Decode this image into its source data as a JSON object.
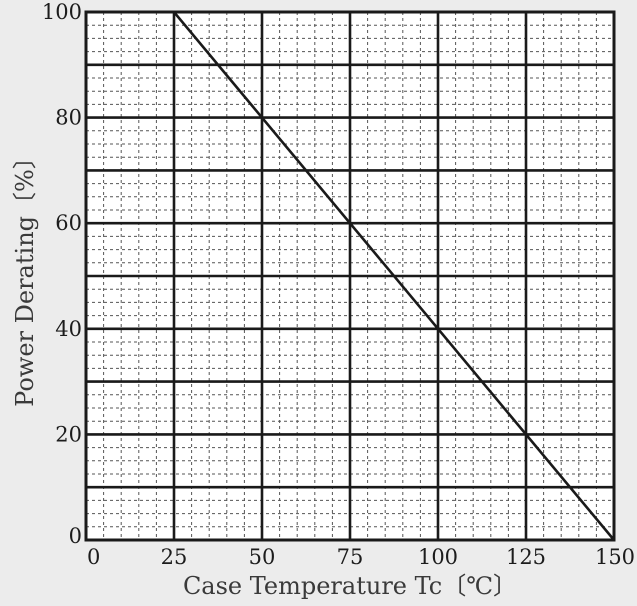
{
  "chart_data": {
    "type": "line",
    "xlabel": "Case Temperature  Tc〔℃〕",
    "ylabel": "Power Derating〔%〕",
    "xlim": [
      0,
      150
    ],
    "ylim": [
      0,
      100
    ],
    "x_ticks": [
      0,
      25,
      50,
      75,
      100,
      125,
      150
    ],
    "y_ticks": [
      0,
      20,
      40,
      60,
      80,
      100
    ],
    "x_tick_labels": [
      "0",
      "25",
      "50",
      "75",
      "100",
      "125",
      "150"
    ],
    "y_tick_labels": [
      "0",
      "20",
      "40",
      "60",
      "80",
      "100"
    ],
    "major_grid_x": [
      25,
      50,
      75,
      100,
      125
    ],
    "major_grid_y": [
      10,
      20,
      30,
      40,
      50,
      60,
      70,
      80,
      90
    ],
    "minor_grid_x_step": 5,
    "minor_grid_y_step": 2.5,
    "grid": true,
    "series": [
      {
        "x": [
          0,
          25,
          150
        ],
        "y": [
          100,
          100,
          0
        ],
        "color": "#1a1a1a"
      }
    ]
  }
}
